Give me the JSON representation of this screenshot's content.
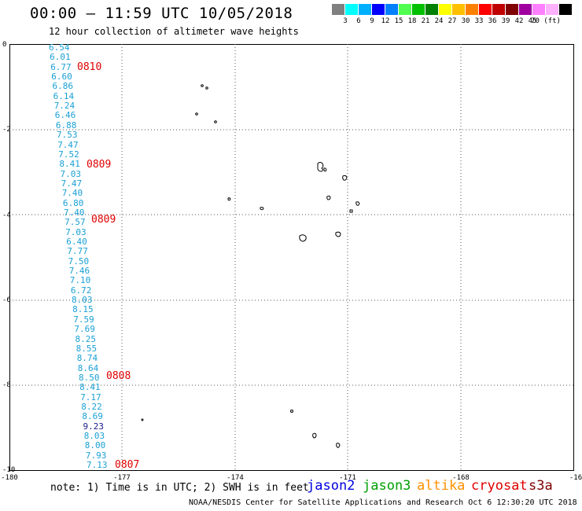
{
  "header": {
    "title": "00:00 — 11:59 UTC 10/05/2018",
    "subtitle": "12 hour collection of altimeter wave heights"
  },
  "legend": {
    "colors": [
      "#808080",
      "#00ffff",
      "#00b0ff",
      "#0000ff",
      "#0080ff",
      "#50ff50",
      "#00c000",
      "#008000",
      "#ffff00",
      "#ffc000",
      "#ff8000",
      "#ff0000",
      "#c00000",
      "#800000",
      "#a000a0",
      "#ff80ff",
      "#ffb0ff",
      "#000000"
    ],
    "labels": [
      "3",
      "6",
      "9",
      "12",
      "15",
      "18",
      "21",
      "24",
      "27",
      "30",
      "33",
      "36",
      "39",
      "42",
      "45",
      "70 (ft)"
    ]
  },
  "axes": {
    "y_ticks": [
      "0",
      "-2",
      "-4",
      "-6",
      "-8",
      "-10"
    ],
    "x_ticks": [
      "-180",
      "-177",
      "-174",
      "-171",
      "-168",
      "-16"
    ]
  },
  "swh_values": [
    "6.54",
    "6.01",
    "6.77",
    "6.60",
    "6.86",
    "6.14",
    "7.24",
    "6.46",
    "6.88",
    "7.53",
    "7.47",
    "7.52",
    "8.41",
    "7.03",
    "7.47",
    "7.40",
    "6.80",
    "7.40",
    "7.57",
    "7.03",
    "6.40",
    "7.77",
    "7.50",
    "7.46",
    "7.10",
    "6.72",
    "8.03",
    "8.15",
    "7.59",
    "7.69",
    "8.25",
    "8.55",
    "8.74",
    "8.64",
    "8.50",
    "8.41",
    "7.17",
    "8.22",
    "8.69",
    "9.23",
    "8.03",
    "8.00",
    "7.93",
    "7.13"
  ],
  "time_labels": [
    "0810",
    "0809",
    "0809",
    "0808",
    "0807"
  ],
  "footer": {
    "note": "note: 1) Time is in UTC; 2) SWH is in feet",
    "satellites": [
      {
        "name": "jason2",
        "color": "#0000e0"
      },
      {
        "name": "jason3",
        "color": "#00a000"
      },
      {
        "name": "altika",
        "color": "#ff9000"
      },
      {
        "name": "cryosat",
        "color": "#e00000"
      },
      {
        "name": "s3a",
        "color": "#800000"
      }
    ],
    "credit": "NOAA/NESDIS Center for Satellite Applications and Research   Oct  6 12:30:20 UTC 2018"
  }
}
